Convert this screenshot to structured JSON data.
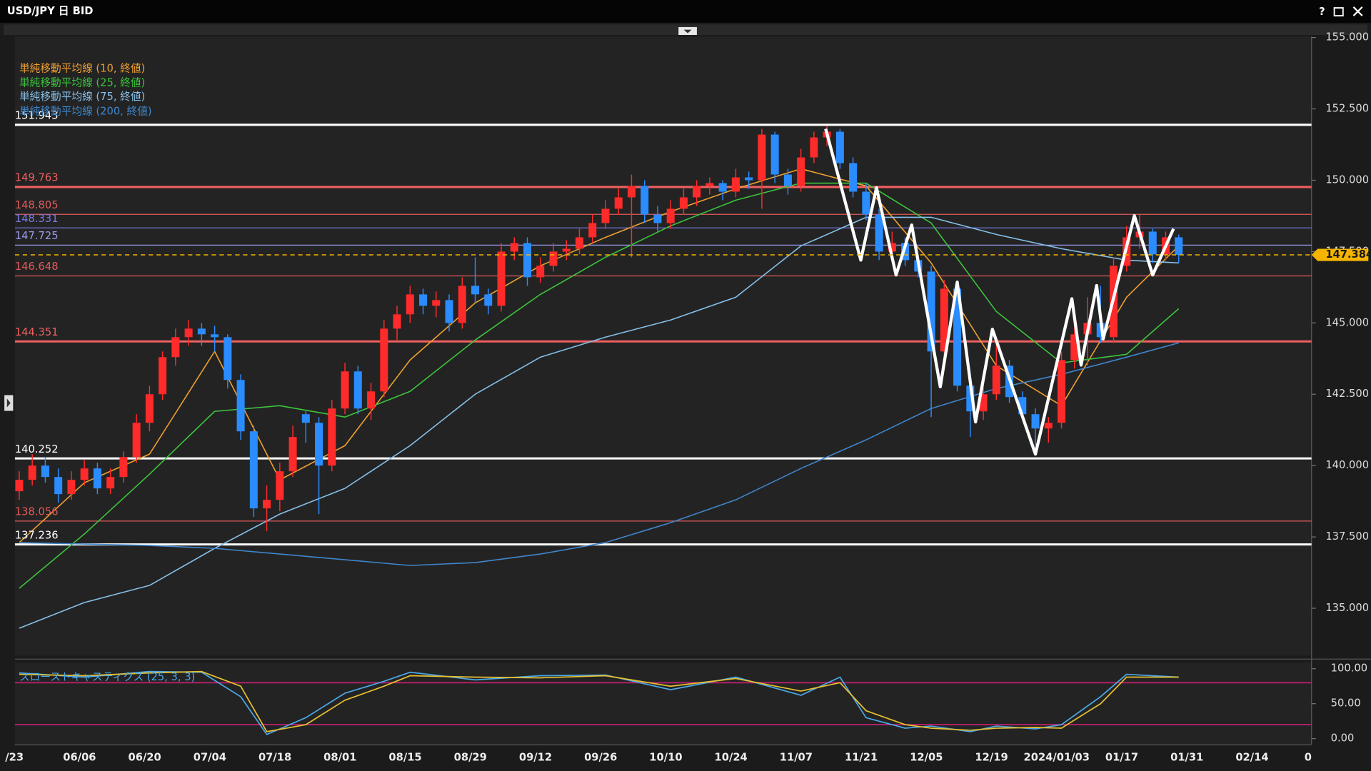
{
  "window": {
    "help": "?"
  },
  "chart_data": {
    "type": "candlestick",
    "title": "USD/JPY 日 BID",
    "up_color": "#ff2a2a",
    "down_color": "#2a8cff",
    "candles": [
      [
        139.1,
        139.8,
        138.8,
        139.5
      ],
      [
        139.5,
        140.4,
        139.3,
        140.0
      ],
      [
        140.0,
        140.3,
        139.4,
        139.6
      ],
      [
        139.6,
        139.9,
        138.7,
        139.0
      ],
      [
        139.0,
        139.8,
        138.8,
        139.5
      ],
      [
        139.5,
        140.2,
        139.3,
        139.9
      ],
      [
        139.9,
        140.1,
        139.0,
        139.2
      ],
      [
        139.2,
        139.9,
        139.0,
        139.6
      ],
      [
        139.6,
        140.5,
        139.4,
        140.3
      ],
      [
        140.3,
        141.8,
        140.1,
        141.5
      ],
      [
        141.5,
        142.8,
        141.2,
        142.5
      ],
      [
        142.5,
        144.0,
        142.3,
        143.8
      ],
      [
        143.8,
        144.8,
        143.5,
        144.5
      ],
      [
        144.5,
        145.1,
        144.2,
        144.8
      ],
      [
        144.8,
        145.0,
        144.2,
        144.6
      ],
      [
        144.6,
        144.9,
        144.0,
        144.5
      ],
      [
        144.5,
        144.6,
        142.7,
        143.0
      ],
      [
        143.0,
        143.2,
        140.9,
        141.2
      ],
      [
        141.2,
        141.4,
        138.2,
        138.5
      ],
      [
        138.5,
        139.3,
        137.7,
        138.8
      ],
      [
        138.8,
        140.1,
        138.4,
        139.8
      ],
      [
        139.8,
        141.4,
        139.6,
        141.0
      ],
      [
        141.8,
        141.9,
        140.8,
        141.5
      ],
      [
        141.5,
        141.7,
        138.3,
        140.0
      ],
      [
        140.0,
        142.3,
        139.8,
        142.0
      ],
      [
        142.0,
        143.6,
        141.8,
        143.3
      ],
      [
        143.3,
        143.5,
        141.8,
        142.0
      ],
      [
        142.0,
        142.9,
        141.6,
        142.6
      ],
      [
        142.6,
        145.1,
        142.4,
        144.8
      ],
      [
        144.8,
        145.6,
        144.4,
        145.3
      ],
      [
        145.3,
        146.3,
        145.0,
        146.0
      ],
      [
        146.0,
        146.2,
        145.3,
        145.6
      ],
      [
        145.6,
        146.1,
        145.2,
        145.8
      ],
      [
        145.8,
        146.0,
        144.7,
        145.0
      ],
      [
        145.0,
        146.6,
        144.8,
        146.3
      ],
      [
        146.3,
        147.3,
        145.7,
        146.0
      ],
      [
        146.0,
        146.2,
        145.3,
        145.6
      ],
      [
        145.6,
        147.8,
        145.4,
        147.5
      ],
      [
        147.5,
        148.0,
        147.2,
        147.8
      ],
      [
        147.8,
        148.0,
        146.3,
        146.6
      ],
      [
        146.6,
        147.3,
        146.4,
        147.0
      ],
      [
        147.0,
        147.8,
        146.8,
        147.5
      ],
      [
        147.5,
        147.9,
        147.2,
        147.6
      ],
      [
        147.6,
        148.3,
        147.4,
        148.0
      ],
      [
        148.0,
        148.8,
        147.8,
        148.5
      ],
      [
        148.5,
        149.3,
        148.3,
        149.0
      ],
      [
        149.0,
        149.7,
        148.8,
        149.4
      ],
      [
        149.4,
        150.2,
        147.3,
        149.8
      ],
      [
        149.8,
        150.0,
        148.5,
        148.8
      ],
      [
        148.8,
        149.1,
        148.2,
        148.5
      ],
      [
        148.5,
        149.3,
        148.3,
        149.0
      ],
      [
        149.0,
        149.7,
        148.8,
        149.4
      ],
      [
        149.4,
        150.0,
        149.1,
        149.8
      ],
      [
        149.8,
        150.1,
        149.5,
        149.9
      ],
      [
        149.9,
        150.0,
        149.3,
        149.6
      ],
      [
        149.6,
        150.4,
        149.4,
        150.1
      ],
      [
        150.1,
        150.3,
        149.7,
        150.0
      ],
      [
        150.0,
        151.8,
        149.0,
        151.6
      ],
      [
        151.6,
        151.7,
        149.9,
        150.2
      ],
      [
        150.2,
        150.4,
        149.5,
        149.8
      ],
      [
        149.8,
        151.1,
        149.6,
        150.8
      ],
      [
        150.8,
        151.7,
        150.6,
        151.5
      ],
      [
        151.5,
        151.9,
        151.2,
        151.7
      ],
      [
        151.7,
        151.8,
        150.4,
        150.6
      ],
      [
        150.6,
        150.8,
        149.4,
        149.6
      ],
      [
        149.6,
        149.9,
        148.6,
        148.8
      ],
      [
        148.8,
        149.0,
        147.2,
        147.5
      ],
      [
        147.5,
        148.2,
        147.3,
        147.8
      ],
      [
        147.8,
        148.0,
        147.0,
        147.2
      ],
      [
        147.2,
        147.4,
        146.6,
        146.8
      ],
      [
        146.8,
        147.0,
        141.7,
        144.0
      ],
      [
        144.0,
        146.5,
        143.8,
        146.2
      ],
      [
        146.2,
        146.3,
        142.6,
        142.8
      ],
      [
        142.8,
        143.1,
        141.0,
        141.9
      ],
      [
        141.9,
        142.8,
        141.6,
        142.5
      ],
      [
        142.5,
        144.5,
        142.3,
        143.5
      ],
      [
        143.5,
        143.7,
        142.2,
        142.4
      ],
      [
        142.4,
        142.6,
        141.6,
        141.8
      ],
      [
        141.8,
        142.0,
        140.7,
        141.3
      ],
      [
        141.3,
        141.7,
        140.8,
        141.5
      ],
      [
        141.5,
        144.0,
        141.3,
        143.7
      ],
      [
        143.7,
        145.0,
        143.4,
        144.6
      ],
      [
        144.6,
        145.9,
        143.5,
        145.0
      ],
      [
        145.0,
        146.3,
        144.3,
        144.5
      ],
      [
        144.5,
        147.3,
        144.3,
        147.0
      ],
      [
        147.0,
        148.4,
        146.8,
        148.0
      ],
      [
        148.0,
        148.8,
        147.6,
        148.2
      ],
      [
        148.2,
        148.3,
        147.1,
        147.4
      ],
      [
        147.4,
        148.2,
        147.2,
        148.0
      ],
      [
        148.0,
        148.1,
        147.1,
        147.384
      ]
    ],
    "ylim": [
      133.34,
      155.03
    ],
    "yticks": [
      {
        "value": 135,
        "label": "135.000"
      },
      {
        "value": 137.5,
        "label": "137.500"
      },
      {
        "value": 140,
        "label": "140.000"
      },
      {
        "value": 142.5,
        "label": "142.500"
      },
      {
        "value": 145,
        "label": "145.000"
      },
      {
        "value": 147.5,
        "label": "147.500"
      },
      {
        "value": 150,
        "label": "150.000"
      },
      {
        "value": 152.5,
        "label": "152.500"
      },
      {
        "value": 155,
        "label": "155.000"
      }
    ],
    "x_labels": [
      "/23",
      "06/06",
      "06/20",
      "07/04",
      "07/18",
      "08/01",
      "08/15",
      "08/29",
      "09/12",
      "09/26",
      "10/10",
      "10/24",
      "11/07",
      "11/21",
      "12/05",
      "12/19",
      "2024/01/03",
      "01/17",
      "01/31",
      "02/14",
      "0"
    ],
    "current_price": {
      "value": 147.384,
      "color": "#f5b400"
    },
    "levels": [
      {
        "value": 151.943,
        "color": "#ffffff",
        "width": 2.5
      },
      {
        "value": 149.763,
        "color": "#f06060",
        "width": 2.5
      },
      {
        "value": 148.805,
        "color": "#e05a5a",
        "width": 1
      },
      {
        "value": 148.331,
        "color": "#7a7ae8",
        "width": 1
      },
      {
        "value": 147.725,
        "color": "#9a9af0",
        "width": 1
      },
      {
        "value": 146.648,
        "color": "#e05a5a",
        "width": 1
      },
      {
        "value": 144.351,
        "color": "#f06060",
        "width": 2.5
      },
      {
        "value": 140.252,
        "color": "#ffffff",
        "width": 2.5
      },
      {
        "value": 138.056,
        "color": "#e05a5a",
        "width": 1
      },
      {
        "value": 137.236,
        "color": "#ffffff",
        "width": 2.5
      }
    ],
    "ma_index": [
      0,
      5,
      10,
      15,
      20,
      25,
      30,
      35,
      40,
      45,
      50,
      55,
      60,
      65,
      70,
      75,
      80,
      85,
      89
    ],
    "series": [
      {
        "name": "単純移動平均線 (10, 終値)",
        "color": "#f0a030",
        "values": [
          137.3,
          139.4,
          140.4,
          144.0,
          139.5,
          140.7,
          143.7,
          145.7,
          147.0,
          148.0,
          148.9,
          149.7,
          150.4,
          149.8,
          147.1,
          143.5,
          142.1,
          145.9,
          147.7
        ]
      },
      {
        "name": "単純移動平均線 (25, 終値)",
        "color": "#3cc43c",
        "values": [
          135.7,
          137.6,
          139.7,
          141.9,
          142.1,
          141.7,
          142.6,
          144.4,
          146.0,
          147.3,
          148.4,
          149.3,
          149.9,
          149.9,
          148.5,
          145.4,
          143.6,
          143.9,
          145.5
        ]
      },
      {
        "name": "単純移動平均線 (75, 終値)",
        "color": "#86bfe8",
        "values": [
          134.3,
          135.2,
          135.8,
          137.1,
          138.3,
          139.2,
          140.7,
          142.5,
          143.8,
          144.5,
          145.1,
          145.9,
          147.7,
          148.7,
          148.7,
          148.1,
          147.6,
          147.2,
          147.1
        ]
      },
      {
        "name": "単純移動平均線 (200, 終値)",
        "color": "#3f86cc",
        "values": [
          137.3,
          137.25,
          137.2,
          137.1,
          136.9,
          136.7,
          136.5,
          136.6,
          136.9,
          137.3,
          138.0,
          138.8,
          139.9,
          140.9,
          142.0,
          142.7,
          143.2,
          143.8,
          144.3
        ]
      }
    ],
    "zigzag": {
      "color": "#ffffff",
      "x": [
        61.9,
        64.6,
        65.8,
        67.3,
        68.5,
        70.7,
        72.0,
        73.4,
        74.7,
        78.0,
        80.8,
        81.5,
        82.7,
        83.2,
        85.6,
        87.0,
        88.6
      ],
      "y": [
        151.8,
        147.2,
        149.74,
        146.68,
        148.43,
        142.76,
        146.43,
        141.53,
        144.78,
        140.4,
        145.85,
        143.52,
        146.31,
        144.44,
        148.76,
        146.68,
        148.3
      ]
    },
    "stochastic": {
      "name": "スローストキャスティクス (25, 3, 3)",
      "name_color": "#4aa8e8",
      "ylim": [
        -8.75,
        108.75
      ],
      "yticks": [
        {
          "value": 0,
          "label": "0.00"
        },
        {
          "value": 50,
          "label": "50.00"
        },
        {
          "value": 100,
          "label": "100.00"
        }
      ],
      "bands": [
        20,
        80
      ],
      "band_color": "#b8206a",
      "x": [
        0,
        5,
        10,
        14,
        17,
        19,
        22,
        25,
        28,
        30,
        35,
        40,
        45,
        50,
        55,
        60,
        63,
        65,
        68,
        70,
        73,
        75,
        78,
        80,
        83,
        85,
        89
      ],
      "series": [
        {
          "color": "#4aa8e8",
          "values": [
            94,
            88,
            96,
            95,
            60,
            6,
            30,
            65,
            82,
            95,
            84,
            90,
            91,
            70,
            88,
            62,
            88,
            30,
            15,
            18,
            10,
            18,
            14,
            20,
            60,
            92,
            88
          ]
        },
        {
          "color": "#e8c030",
          "values": [
            92,
            90,
            94,
            96,
            75,
            10,
            20,
            55,
            75,
            90,
            88,
            87,
            90,
            75,
            86,
            68,
            80,
            40,
            20,
            15,
            12,
            15,
            16,
            15,
            50,
            88,
            88
          ]
        }
      ]
    }
  }
}
